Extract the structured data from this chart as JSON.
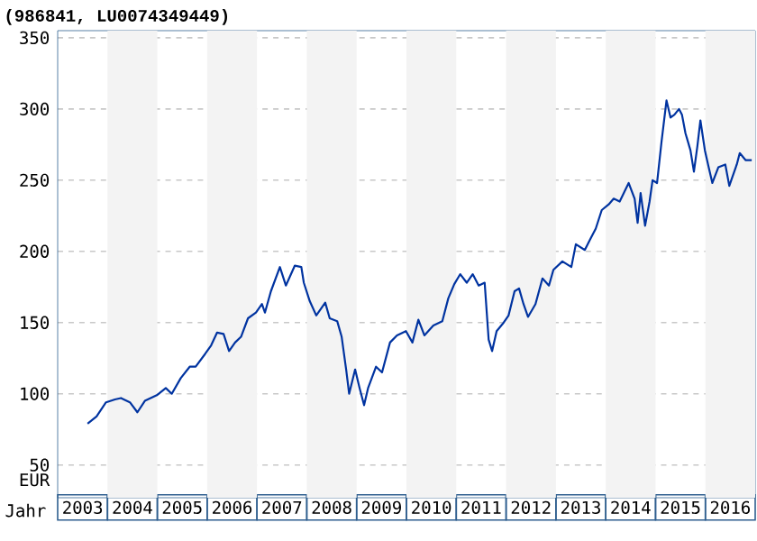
{
  "chart_data": {
    "type": "line",
    "title": "(986841, LU0074349449)",
    "xlabel": "Jahr",
    "ylabel": "EUR",
    "xlim": [
      2003,
      2017
    ],
    "ylim": [
      27,
      355
    ],
    "xticks": [
      {
        "value": 2003.5,
        "label": "2003"
      },
      {
        "value": 2004.5,
        "label": "2004"
      },
      {
        "value": 2005.5,
        "label": "2005"
      },
      {
        "value": 2006.5,
        "label": "2006"
      },
      {
        "value": 2007.5,
        "label": "2007"
      },
      {
        "value": 2008.5,
        "label": "2008"
      },
      {
        "value": 2009.5,
        "label": "2009"
      },
      {
        "value": 2010.5,
        "label": "2010"
      },
      {
        "value": 2011.5,
        "label": "2011"
      },
      {
        "value": 2012.5,
        "label": "2012"
      },
      {
        "value": 2013.5,
        "label": "2013"
      },
      {
        "value": 2014.5,
        "label": "2014"
      },
      {
        "value": 2015.5,
        "label": "2015"
      },
      {
        "value": 2016.5,
        "label": "2016"
      }
    ],
    "yticks": [
      50,
      100,
      150,
      200,
      250,
      300,
      350
    ],
    "grid": "y",
    "marker": "none",
    "line_style": "solid",
    "bands": [
      {
        "axis": "x",
        "from": 2004,
        "to": 2005,
        "color": "#f3f3f3"
      },
      {
        "axis": "x",
        "from": 2006,
        "to": 2007,
        "color": "#f3f3f3"
      },
      {
        "axis": "x",
        "from": 2008,
        "to": 2009,
        "color": "#f3f3f3"
      },
      {
        "axis": "x",
        "from": 2010,
        "to": 2011,
        "color": "#f3f3f3"
      },
      {
        "axis": "x",
        "from": 2012,
        "to": 2013,
        "color": "#f3f3f3"
      },
      {
        "axis": "x",
        "from": 2014,
        "to": 2015,
        "color": "#f3f3f3"
      },
      {
        "axis": "x",
        "from": 2016,
        "to": 2017,
        "color": "#f3f3f3"
      }
    ],
    "series": [
      {
        "color": "#0033a0",
        "x": [
          2003.6,
          2003.78,
          2003.97,
          2004.15,
          2004.27,
          2004.45,
          2004.6,
          2004.75,
          2004.99,
          2005.17,
          2005.29,
          2005.47,
          2005.65,
          2005.77,
          2005.96,
          2006.08,
          2006.2,
          2006.33,
          2006.44,
          2006.56,
          2006.68,
          2006.82,
          2006.98,
          2007.1,
          2007.16,
          2007.28,
          2007.46,
          2007.58,
          2007.76,
          2007.89,
          2007.94,
          2008.06,
          2008.19,
          2008.37,
          2008.46,
          2008.61,
          2008.7,
          2008.79,
          2008.85,
          2008.97,
          2009.06,
          2009.15,
          2009.23,
          2009.39,
          2009.51,
          2009.67,
          2009.81,
          2009.99,
          2010.12,
          2010.24,
          2010.36,
          2010.54,
          2010.72,
          2010.84,
          2010.96,
          2011.08,
          2011.21,
          2011.33,
          2011.45,
          2011.57,
          2011.65,
          2011.72,
          2011.81,
          2011.93,
          2012.05,
          2012.17,
          2012.26,
          2012.35,
          2012.44,
          2012.59,
          2012.73,
          2012.86,
          2012.95,
          2013.13,
          2013.31,
          2013.4,
          2013.58,
          2013.68,
          2013.8,
          2013.92,
          2014.06,
          2014.16,
          2014.28,
          2014.46,
          2014.58,
          2014.64,
          2014.7,
          2014.79,
          2014.88,
          2014.94,
          2015.03,
          2015.12,
          2015.22,
          2015.3,
          2015.38,
          2015.47,
          2015.53,
          2015.6,
          2015.7,
          2015.77,
          2015.84,
          2015.9,
          2015.99,
          2016.06,
          2016.14,
          2016.26,
          2016.4,
          2016.48,
          2016.63,
          2016.69,
          2016.81,
          2016.93
        ],
        "values": [
          79,
          84,
          94,
          96,
          97,
          94,
          87,
          95,
          99,
          104,
          100,
          111,
          119,
          119,
          128,
          134,
          143,
          142,
          130,
          136,
          140,
          153,
          157,
          163,
          157,
          172,
          189,
          176,
          190,
          189,
          178,
          165,
          155,
          164,
          153,
          151,
          140,
          117,
          100,
          117,
          104,
          92,
          104,
          119,
          115,
          136,
          141,
          144,
          136,
          152,
          141,
          148,
          151,
          167,
          177,
          184,
          178,
          184,
          176,
          178,
          138,
          130,
          144,
          149,
          155,
          172,
          174,
          163,
          154,
          163,
          181,
          176,
          187,
          193,
          189,
          205,
          201,
          208,
          216,
          229,
          233,
          237,
          235,
          248,
          237,
          220,
          241,
          218,
          235,
          250,
          248,
          277,
          306,
          294,
          296,
          300,
          296,
          283,
          271,
          256,
          274,
          292,
          271,
          260,
          248,
          259,
          261,
          246,
          261,
          269,
          264,
          264
        ]
      }
    ]
  }
}
